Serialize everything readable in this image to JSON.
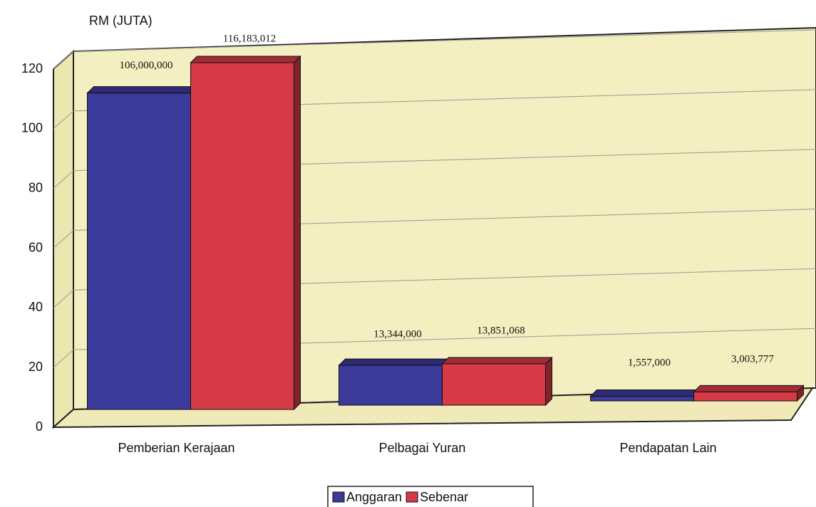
{
  "chart_data": {
    "type": "bar3d",
    "y_axis_label": "RM (JUTA)",
    "categories": [
      "Pemberian Kerajaan",
      "Pelbagai Yuran",
      "Pendapatan Lain"
    ],
    "series": [
      {
        "name": "Anggaran",
        "color": "#3b3a9a",
        "values": [
          106,
          13.344,
          1.557
        ],
        "value_labels": [
          "106,000,000",
          "13,344,000",
          "1,557,000"
        ]
      },
      {
        "name": "Sebenar",
        "color": "#d63a47",
        "values": [
          116.183012,
          13.851068,
          3.003777
        ],
        "value_labels": [
          "116,183,012",
          "13,851,068",
          "3,003,777"
        ]
      }
    ],
    "ylim": [
      0,
      120
    ],
    "yticks": [
      0,
      20,
      40,
      60,
      80,
      100,
      120
    ],
    "grid": true,
    "legend": "bottom"
  }
}
